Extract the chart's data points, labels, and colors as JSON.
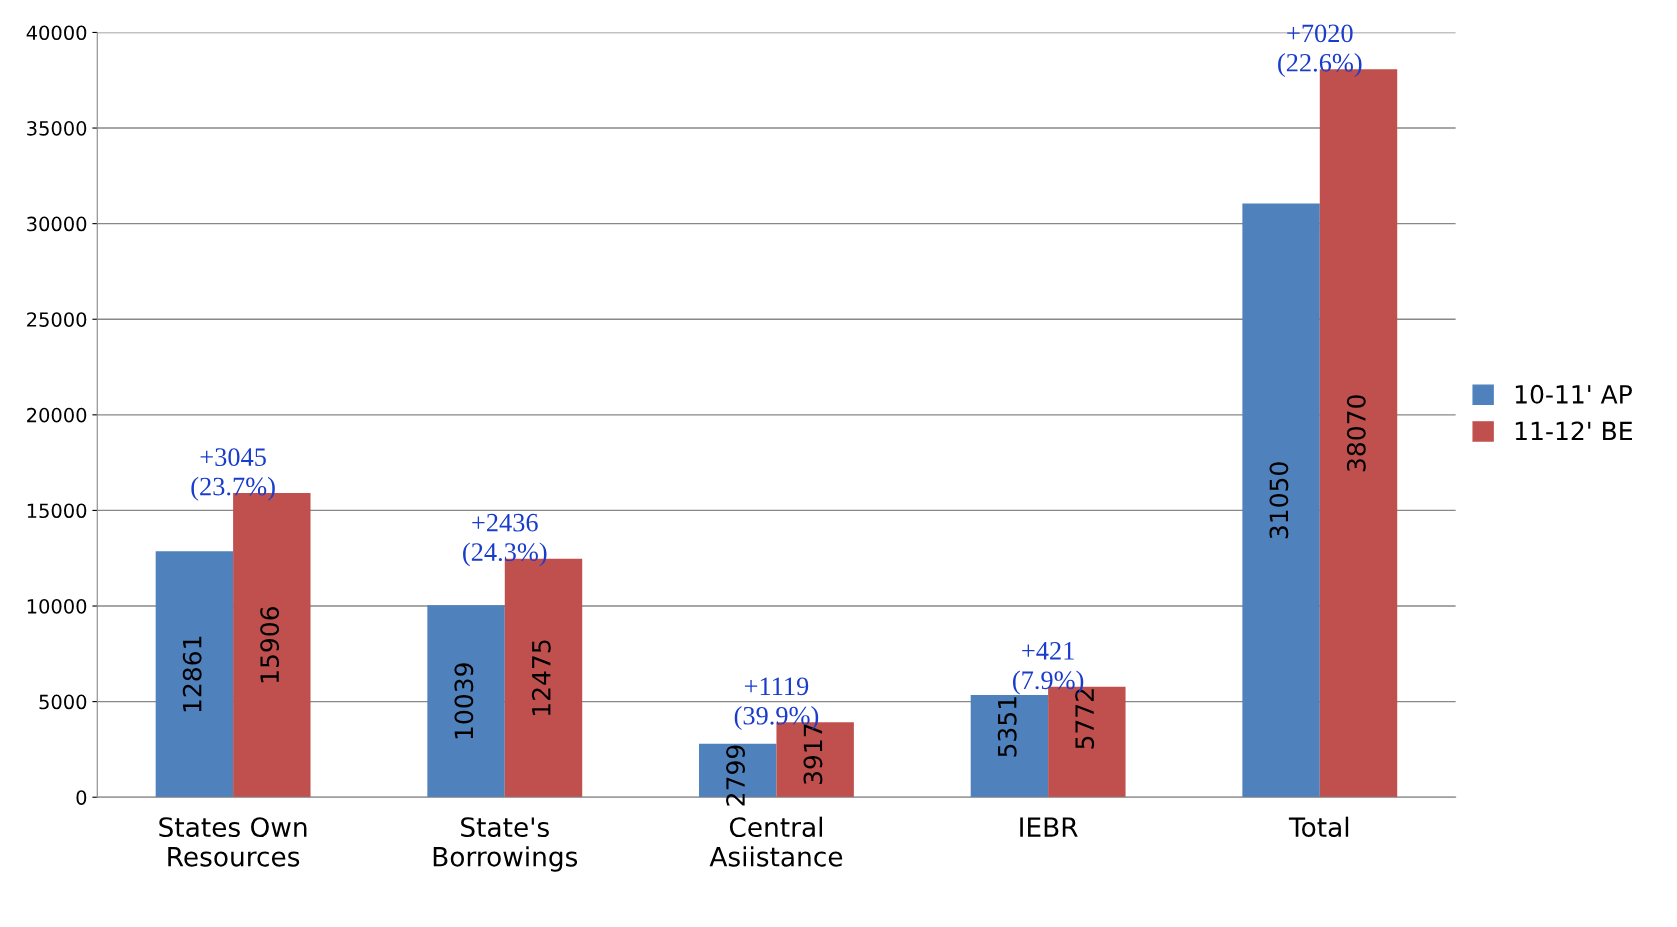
{
  "chart_data": {
    "type": "bar",
    "categories": [
      "States Own\nResources",
      "State's\nBorrowings",
      "Central\nAsiistance",
      "IEBR",
      "Total"
    ],
    "series": [
      {
        "name": "10-11' AP",
        "color": "#4f81bd",
        "values": [
          12861,
          10039,
          2799,
          5351,
          31050
        ]
      },
      {
        "name": "11-12' BE",
        "color": "#c0504d",
        "values": [
          15906,
          12475,
          3917,
          5772,
          38070
        ]
      }
    ],
    "ylim": [
      0,
      40000
    ],
    "yticks": [
      0,
      5000,
      10000,
      15000,
      20000,
      25000,
      30000,
      35000,
      40000
    ],
    "grid": "y",
    "legend": "right",
    "data_labels": true,
    "annotations": [
      {
        "text": "+3045\n(23.7%)",
        "x": "States Own\nResources",
        "y": 15906
      },
      {
        "text": "+2436\n(24.3%)",
        "x": "State's\nBorrowings",
        "y": 12475
      },
      {
        "text": "+1119\n(39.9%)",
        "x": "Central\nAsiistance",
        "y": 3917
      },
      {
        "text": "+421\n(7.9%)",
        "x": "IEBR",
        "y": 5772
      },
      {
        "text": "+7020\n(22.6%)",
        "x": "Total",
        "y": 38070
      }
    ]
  }
}
